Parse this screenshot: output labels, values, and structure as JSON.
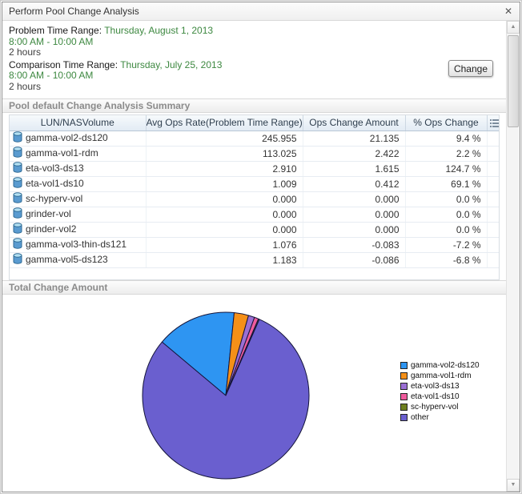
{
  "window": {
    "title": "Perform Pool Change Analysis",
    "close_icon": "✕"
  },
  "time_ranges": {
    "problem_label": "Problem Time Range:",
    "problem_date": "Thursday, August 1, 2013",
    "problem_time": "8:00 AM - 10:00 AM",
    "problem_duration": "2 hours",
    "comparison_label": "Comparison Time Range:",
    "comparison_date": "Thursday, July 25, 2013",
    "comparison_time": "8:00 AM - 10:00 AM",
    "comparison_duration": "2 hours",
    "change_button": "Change"
  },
  "summary": {
    "title": "Pool default Change Analysis Summary",
    "columns": [
      "LUN/NASVolume",
      "Avg Ops Rate(Problem Time Range)",
      "Ops Change Amount",
      "% Ops Change"
    ],
    "rows": [
      {
        "name": "gamma-vol2-ds120",
        "avg": "245.955",
        "change": "21.135",
        "pct": "9.4 %"
      },
      {
        "name": "gamma-vol1-rdm",
        "avg": "113.025",
        "change": "2.422",
        "pct": "2.2 %"
      },
      {
        "name": "eta-vol3-ds13",
        "avg": "2.910",
        "change": "1.615",
        "pct": "124.7 %"
      },
      {
        "name": "eta-vol1-ds10",
        "avg": "1.009",
        "change": "0.412",
        "pct": "69.1 %"
      },
      {
        "name": "sc-hyperv-vol",
        "avg": "0.000",
        "change": "0.000",
        "pct": "0.0 %"
      },
      {
        "name": "grinder-vol",
        "avg": "0.000",
        "change": "0.000",
        "pct": "0.0 %"
      },
      {
        "name": "grinder-vol2",
        "avg": "0.000",
        "change": "0.000",
        "pct": "0.0 %"
      },
      {
        "name": "gamma-vol3-thin-ds121",
        "avg": "1.076",
        "change": "-0.083",
        "pct": "-7.2 %"
      },
      {
        "name": "gamma-vol5-ds123",
        "avg": "1.183",
        "change": "-0.086",
        "pct": "-6.8 %"
      }
    ]
  },
  "chart_data": {
    "type": "pie",
    "title": "Total Change Amount",
    "labels": [
      "gamma-vol2-ds120",
      "gamma-vol1-rdm",
      "eta-vol3-ds13",
      "eta-vol1-ds10",
      "sc-hyperv-vol",
      "other"
    ],
    "values_pct": [
      15.5,
      2.8,
      1.2,
      0.8,
      0.2,
      79.5
    ],
    "colors": [
      "#2e95f2",
      "#f59018",
      "#9a6fd4",
      "#ef5b9c",
      "#6d7f1f",
      "#6a5fcf"
    ],
    "start_angle_deg": -50,
    "legend_position": "right"
  },
  "scrollbar": {
    "up_icon": "▲",
    "down_icon": "▼"
  }
}
